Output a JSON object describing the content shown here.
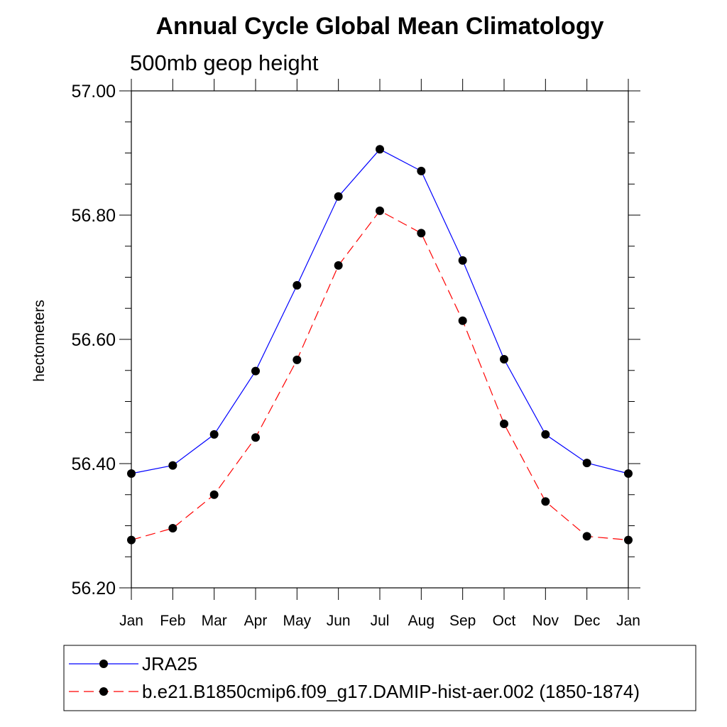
{
  "chart_data": {
    "type": "line",
    "title": "Annual Cycle Global Mean Climatology",
    "subtitle": "500mb geop height",
    "xlabel": "",
    "ylabel": "hectometers",
    "categories": [
      "Jan",
      "Feb",
      "Mar",
      "Apr",
      "May",
      "Jun",
      "Jul",
      "Aug",
      "Sep",
      "Oct",
      "Nov",
      "Dec",
      "Jan"
    ],
    "ylim": [
      56.2,
      57.0
    ],
    "yticks": [
      "56.20",
      "56.40",
      "56.60",
      "56.80",
      "57.00"
    ],
    "ytick_values": [
      56.2,
      56.4,
      56.6,
      56.8,
      57.0
    ],
    "grid": false,
    "legend_position": "bottom",
    "series": [
      {
        "name": "JRA25",
        "color": "#0000ff",
        "dash": "solid",
        "values": [
          56.384,
          56.397,
          56.447,
          56.549,
          56.687,
          56.83,
          56.906,
          56.871,
          56.727,
          56.568,
          56.447,
          56.401,
          56.384
        ]
      },
      {
        "name": "b.e21.B1850cmip6.f09_g17.DAMIP-hist-aer.002 (1850-1874)",
        "color": "#ff0000",
        "dash": "dashed",
        "values": [
          56.277,
          56.296,
          56.35,
          56.442,
          56.567,
          56.719,
          56.807,
          56.771,
          56.63,
          56.464,
          56.339,
          56.283,
          56.277
        ]
      }
    ]
  }
}
